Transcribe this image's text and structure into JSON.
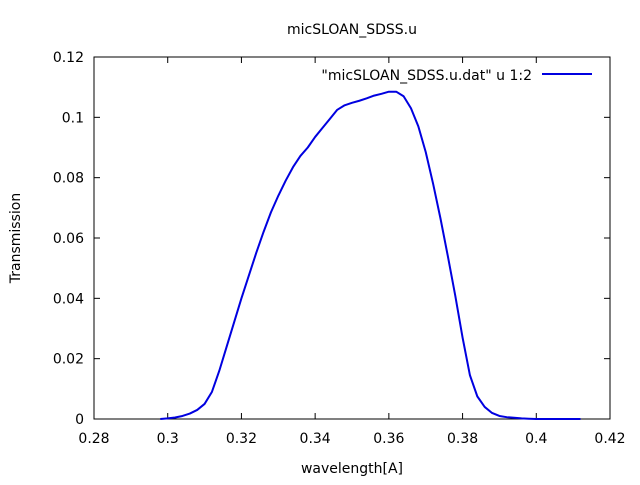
{
  "chart_data": {
    "type": "line",
    "title": "micSLOAN_SDSS.u",
    "xlabel": "wavelength[A]",
    "ylabel": "Transmission",
    "xlim": [
      0.28,
      0.42
    ],
    "ylim": [
      0,
      0.12
    ],
    "xticks": [
      0.28,
      0.3,
      0.32,
      0.34,
      0.36,
      0.38,
      0.4,
      0.42
    ],
    "xtick_labels": [
      "0.28",
      "0.3",
      "0.32",
      "0.34",
      "0.36",
      "0.38",
      "0.4",
      "0.42"
    ],
    "yticks": [
      0,
      0.02,
      0.04,
      0.06,
      0.08,
      0.1,
      0.12
    ],
    "ytick_labels": [
      "0",
      "0.02",
      "0.04",
      "0.06",
      "0.08",
      "0.1",
      "0.12"
    ],
    "grid": false,
    "legend_position": "top-right",
    "series": [
      {
        "name": "\"micSLOAN_SDSS.u.dat\" u 1:2",
        "color": "#0000e0",
        "x": [
          0.298,
          0.3,
          0.302,
          0.304,
          0.306,
          0.308,
          0.31,
          0.312,
          0.314,
          0.316,
          0.318,
          0.32,
          0.322,
          0.324,
          0.326,
          0.328,
          0.33,
          0.332,
          0.334,
          0.336,
          0.338,
          0.34,
          0.342,
          0.344,
          0.346,
          0.348,
          0.35,
          0.352,
          0.354,
          0.356,
          0.358,
          0.36,
          0.362,
          0.364,
          0.366,
          0.368,
          0.37,
          0.372,
          0.374,
          0.376,
          0.378,
          0.38,
          0.382,
          0.384,
          0.386,
          0.388,
          0.39,
          0.392,
          0.394,
          0.396,
          0.398,
          0.4,
          0.402,
          0.404,
          0.406,
          0.408,
          0.41,
          0.412
        ],
        "y": [
          0.0,
          0.0002,
          0.0005,
          0.001,
          0.0018,
          0.003,
          0.005,
          0.009,
          0.016,
          0.024,
          0.032,
          0.04,
          0.0475,
          0.055,
          0.062,
          0.0685,
          0.074,
          0.079,
          0.0835,
          0.0872,
          0.09,
          0.0935,
          0.0965,
          0.0995,
          0.1025,
          0.104,
          0.1048,
          0.1055,
          0.1063,
          0.1072,
          0.1078,
          0.1085,
          0.1085,
          0.107,
          0.103,
          0.097,
          0.0885,
          0.078,
          0.0665,
          0.054,
          0.041,
          0.027,
          0.0145,
          0.0075,
          0.004,
          0.002,
          0.001,
          0.0006,
          0.0004,
          0.0002,
          0.0001,
          0.0,
          0.0,
          0.0,
          0.0,
          0.0,
          0.0,
          0.0
        ]
      }
    ]
  }
}
